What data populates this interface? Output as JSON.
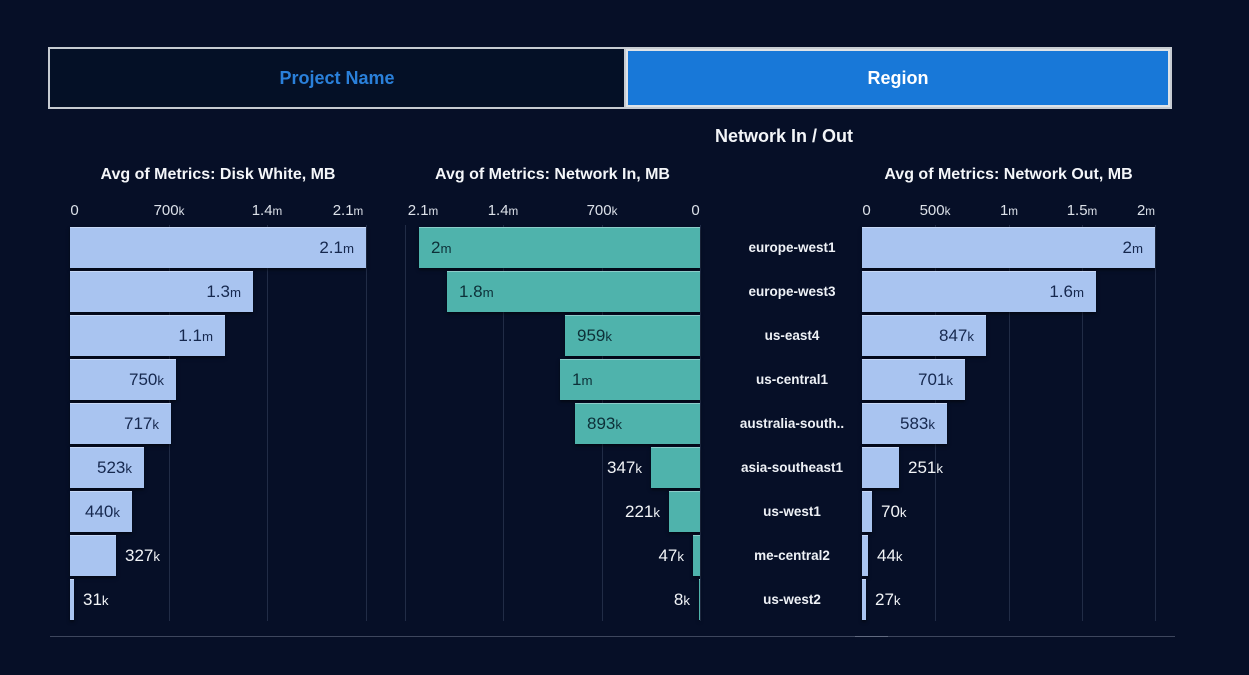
{
  "header": {
    "tabs": [
      {
        "label": "Project Name",
        "active": false
      },
      {
        "label": "Region",
        "active": true
      }
    ],
    "page_title": "Network In / Out"
  },
  "colors": {
    "background": "#060f27",
    "active_tab_blue": "#1878d8",
    "inactive_tab_text_blue": "#2a80da",
    "tab_border_gray": "#c6cbd1",
    "bar_blue": "#a9c4f0",
    "bar_teal": "#4fb3ac",
    "bar_label_dark_blue": "#16284e",
    "bar_label_dark_teal": "#0d3038",
    "outside_label_white": "#f2f4f7",
    "axis_tick_text": "#dce1e9"
  },
  "category_axis": {
    "labels": [
      "europe-west1",
      "europe-west3",
      "us-east4",
      "us-central1",
      "australia-south..",
      "asia-southeast1",
      "us-west1",
      "me-central2",
      "us-west2"
    ]
  },
  "chart_data": [
    {
      "type": "bar",
      "orientation": "horizontal",
      "title": "Avg of Metrics: Disk White, MB",
      "categories": [
        "europe-west1",
        "europe-west3",
        "us-east4",
        "us-central1",
        "australia-south..",
        "asia-southeast1",
        "us-west1",
        "me-central2",
        "us-west2"
      ],
      "values": [
        2100000,
        1300000,
        1100000,
        750000,
        717000,
        523000,
        440000,
        327000,
        31000
      ],
      "value_labels": [
        "2.1M",
        "1.3M",
        "1.1M",
        "750K",
        "717K",
        "523K",
        "440K",
        "327K",
        "31K"
      ],
      "axis": {
        "min": 0,
        "max": 2100000,
        "reversed": false,
        "ticks": [
          {
            "value": 0,
            "label": "0"
          },
          {
            "value": 700000,
            "label": "700K"
          },
          {
            "value": 1400000,
            "label": "1.4M"
          },
          {
            "value": 2100000,
            "label": "2.1M"
          }
        ]
      },
      "bar_color": "#a9c4f0",
      "inside_label_color": "#16284e",
      "grid": "vertical",
      "legend": "none"
    },
    {
      "type": "bar",
      "orientation": "horizontal",
      "title": "Avg of Metrics: Network In, MB",
      "categories": [
        "europe-west1",
        "europe-west3",
        "us-east4",
        "us-central1",
        "australia-south..",
        "asia-southeast1",
        "us-west1",
        "me-central2",
        "us-west2"
      ],
      "values": [
        2000000,
        1800000,
        959000,
        1000000,
        893000,
        347000,
        221000,
        47000,
        8000
      ],
      "value_labels": [
        "2M",
        "1.8M",
        "959K",
        "1M",
        "893K",
        "347K",
        "221K",
        "47K",
        "8K"
      ],
      "axis": {
        "min": 0,
        "max": 2100000,
        "reversed": true,
        "ticks": [
          {
            "value": 2100000,
            "label": "2.1M"
          },
          {
            "value": 1400000,
            "label": "1.4M"
          },
          {
            "value": 700000,
            "label": "700K"
          },
          {
            "value": 0,
            "label": "0"
          }
        ]
      },
      "bar_color": "#4fb3ac",
      "inside_label_color": "#0d3038",
      "grid": "vertical",
      "legend": "none"
    },
    {
      "type": "bar",
      "orientation": "horizontal",
      "title": "Avg of Metrics: Network Out, MB",
      "categories": [
        "europe-west1",
        "europe-west3",
        "us-east4",
        "us-central1",
        "australia-south..",
        "asia-southeast1",
        "us-west1",
        "me-central2",
        "us-west2"
      ],
      "values": [
        2000000,
        1600000,
        847000,
        701000,
        583000,
        251000,
        70000,
        44000,
        27000
      ],
      "value_labels": [
        "2M",
        "1.6M",
        "847K",
        "701K",
        "583K",
        "251K",
        "70K",
        "44K",
        "27K"
      ],
      "axis": {
        "min": 0,
        "max": 2000000,
        "reversed": false,
        "ticks": [
          {
            "value": 0,
            "label": "0"
          },
          {
            "value": 500000,
            "label": "500K"
          },
          {
            "value": 1000000,
            "label": "1M"
          },
          {
            "value": 1500000,
            "label": "1.5M"
          },
          {
            "value": 2000000,
            "label": "2M"
          }
        ]
      },
      "bar_color": "#a9c4f0",
      "inside_label_color": "#16284e",
      "grid": "vertical",
      "legend": "none"
    }
  ]
}
